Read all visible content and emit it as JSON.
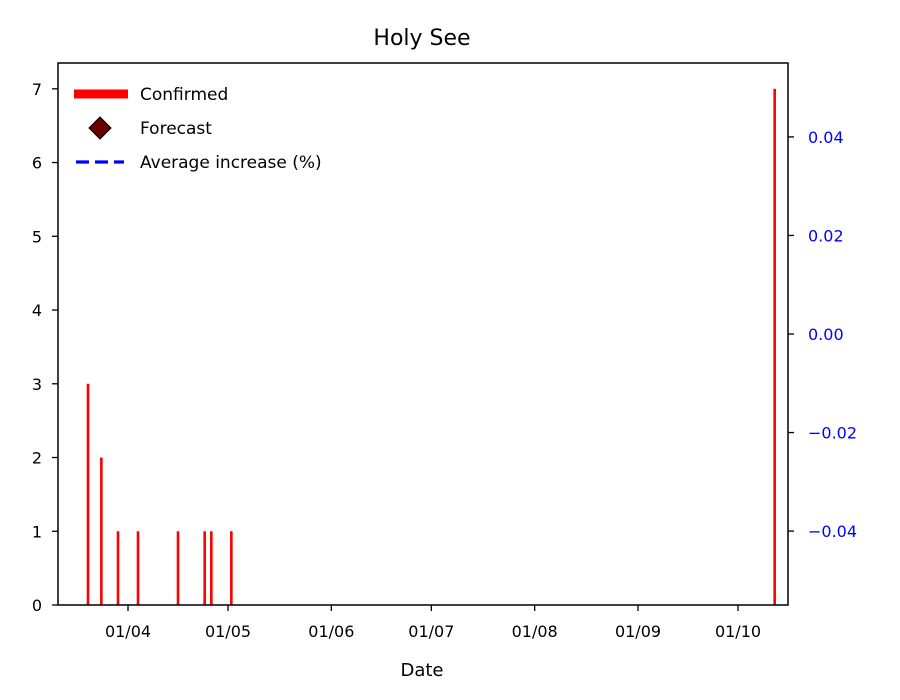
{
  "chart_data": {
    "type": "bar",
    "title": "Holy See",
    "xlabel": "Date",
    "ylabel": "",
    "x_range": [
      "2020-03-11",
      "2020-10-16"
    ],
    "xticks": [
      {
        "date": "2020-04-01",
        "label": "01/04"
      },
      {
        "date": "2020-05-01",
        "label": "01/05"
      },
      {
        "date": "2020-06-01",
        "label": "01/06"
      },
      {
        "date": "2020-07-01",
        "label": "01/07"
      },
      {
        "date": "2020-08-01",
        "label": "01/08"
      },
      {
        "date": "2020-09-01",
        "label": "01/09"
      },
      {
        "date": "2020-10-01",
        "label": "01/10"
      }
    ],
    "ylim": [
      0,
      7.35
    ],
    "yticks": [
      0,
      1,
      2,
      3,
      4,
      5,
      6,
      7
    ],
    "y2lim": [
      -0.055,
      0.055
    ],
    "y2ticks": [
      {
        "value": 0.04,
        "label": "0.04"
      },
      {
        "value": 0.02,
        "label": "0.02"
      },
      {
        "value": 0.0,
        "label": "0.00"
      },
      {
        "value": -0.02,
        "label": "−0.02"
      },
      {
        "value": -0.04,
        "label": "−0.04"
      }
    ],
    "series": [
      {
        "name": "Confirmed",
        "color": "#ff0000",
        "points": [
          {
            "date": "2020-03-20",
            "value": 3
          },
          {
            "date": "2020-03-24",
            "value": 2
          },
          {
            "date": "2020-03-29",
            "value": 1
          },
          {
            "date": "2020-04-04",
            "value": 1
          },
          {
            "date": "2020-04-16",
            "value": 1
          },
          {
            "date": "2020-04-24",
            "value": 1
          },
          {
            "date": "2020-04-26",
            "value": 1
          },
          {
            "date": "2020-05-02",
            "value": 1
          },
          {
            "date": "2020-10-12",
            "value": 7
          }
        ]
      },
      {
        "name": "Forecast",
        "color": "#6b0000",
        "points": []
      },
      {
        "name": "Average increase (%)",
        "color": "#0000ff",
        "points": []
      }
    ],
    "legend": {
      "position": "top-left",
      "entries": [
        {
          "label": "Confirmed",
          "color": "#ff0000",
          "marker": "thick-line"
        },
        {
          "label": "Forecast",
          "color": "#6b0000",
          "marker": "diamond"
        },
        {
          "label": "Average increase (%)",
          "color": "#0000ff",
          "marker": "dashed-line"
        }
      ]
    },
    "right_axis_color": "#0000ff",
    "grid": false
  }
}
